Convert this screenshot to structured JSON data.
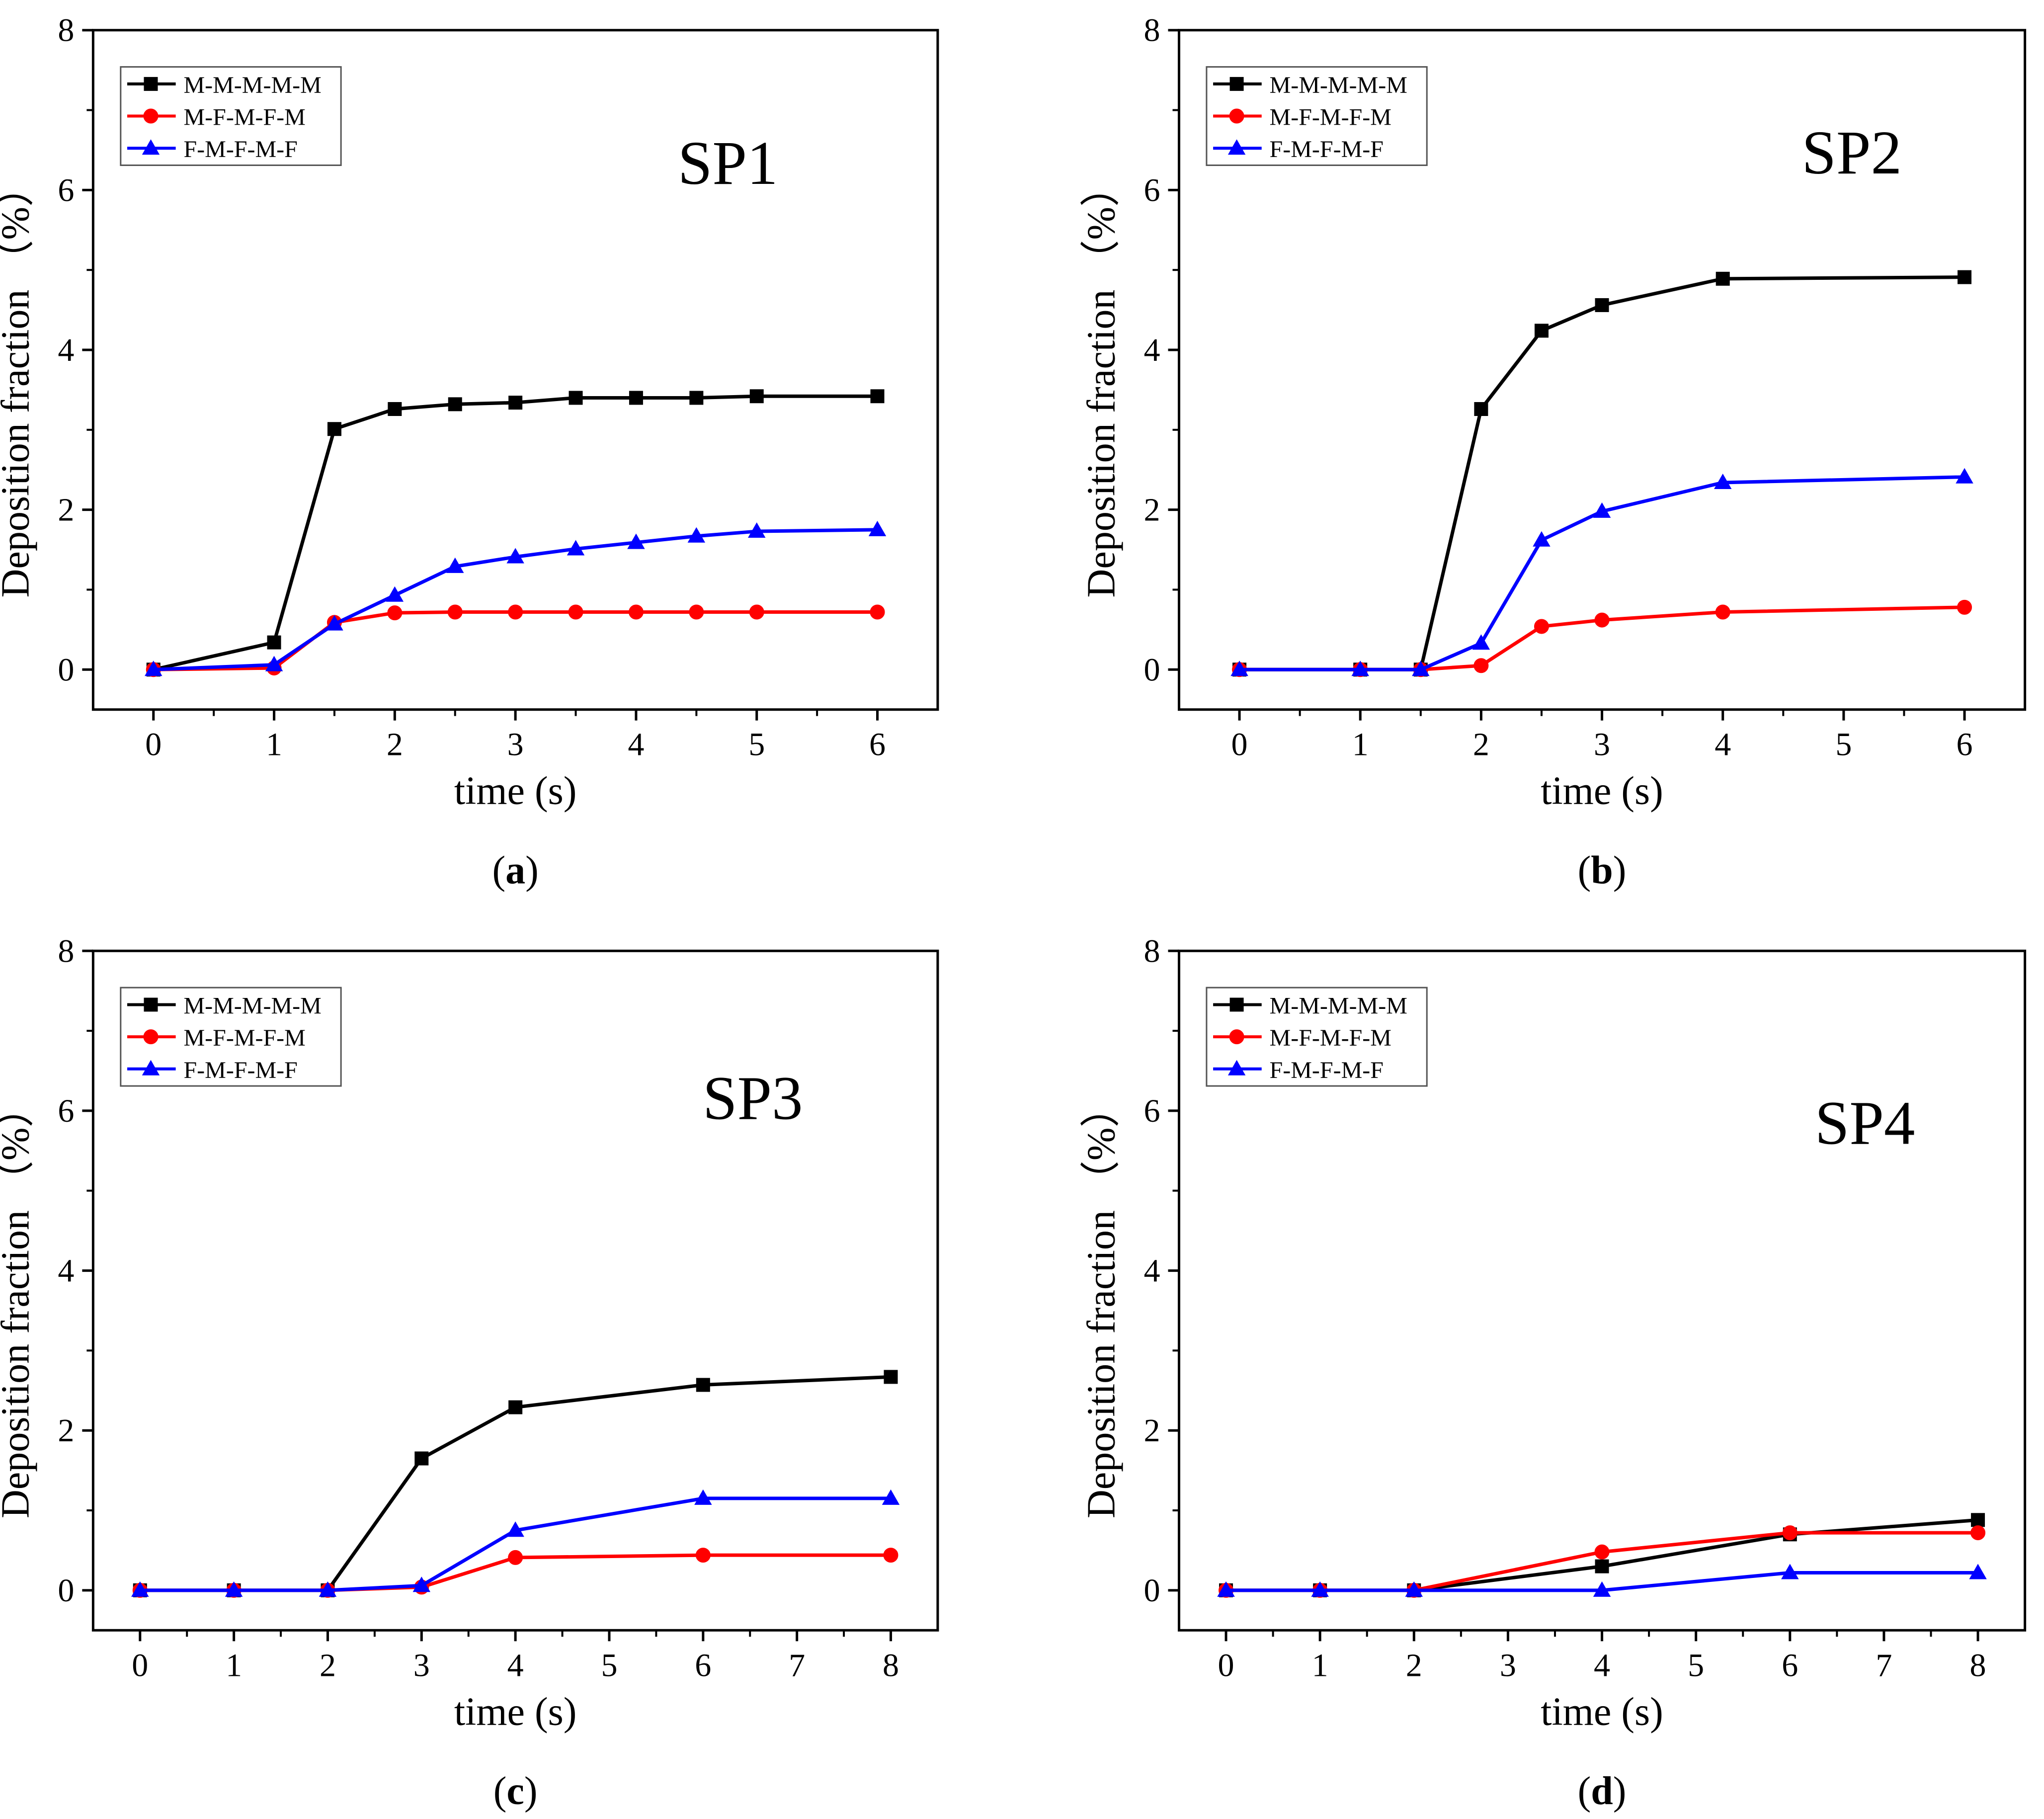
{
  "colors": {
    "M-M-M-M-M": "#000000",
    "M-F-M-F-M": "#ff0000",
    "F-M-F-M-F": "#0000ff"
  },
  "chart_data": [
    {
      "type": "line",
      "caption": "(a)",
      "annotation": "SP1",
      "xlabel": "time (s)",
      "ylabel": "Deposition fraction （%）",
      "xlim": [
        -0.5,
        6.5
      ],
      "ylim": [
        -0.5,
        8
      ],
      "xticks": [
        0,
        1,
        2,
        3,
        4,
        5,
        6
      ],
      "yticks": [
        0,
        2,
        4,
        6,
        8
      ],
      "grid": false,
      "legend_position": "top-left",
      "series": [
        {
          "name": "M-M-M-M-M",
          "marker": "square",
          "x": [
            0,
            1,
            1.5,
            2,
            2.5,
            3,
            3.5,
            4,
            4.5,
            5,
            6
          ],
          "y": [
            0,
            0.34,
            3.01,
            3.26,
            3.32,
            3.34,
            3.4,
            3.4,
            3.4,
            3.42,
            3.42
          ]
        },
        {
          "name": "M-F-M-F-M",
          "marker": "circle",
          "x": [
            0,
            1,
            1.5,
            2,
            2.5,
            3,
            3.5,
            4,
            4.5,
            5,
            6
          ],
          "y": [
            0,
            0.02,
            0.59,
            0.71,
            0.72,
            0.72,
            0.72,
            0.72,
            0.72,
            0.72,
            0.72
          ]
        },
        {
          "name": "F-M-F-M-F",
          "marker": "triangle",
          "x": [
            0,
            1,
            1.5,
            2,
            2.5,
            3,
            3.5,
            4,
            4.5,
            5,
            6
          ],
          "y": [
            0,
            0.06,
            0.57,
            0.93,
            1.29,
            1.41,
            1.51,
            1.59,
            1.67,
            1.73,
            1.75
          ]
        }
      ]
    },
    {
      "type": "line",
      "caption": "(b)",
      "annotation": "SP2",
      "xlabel": "time (s)",
      "ylabel": "Deposition fraction （%）",
      "xlim": [
        -0.5,
        6.5
      ],
      "ylim": [
        -0.5,
        8
      ],
      "xticks": [
        0,
        1,
        2,
        3,
        4,
        5,
        6
      ],
      "yticks": [
        0,
        2,
        4,
        6,
        8
      ],
      "grid": false,
      "legend_position": "top-left",
      "series": [
        {
          "name": "M-M-M-M-M",
          "marker": "square",
          "x": [
            0,
            1,
            1.5,
            2,
            2.5,
            3,
            4,
            6
          ],
          "y": [
            0,
            0,
            0,
            3.26,
            4.24,
            4.56,
            4.89,
            4.91
          ]
        },
        {
          "name": "M-F-M-F-M",
          "marker": "circle",
          "x": [
            0,
            1,
            1.5,
            2,
            2.5,
            3,
            4,
            6
          ],
          "y": [
            0,
            0,
            0,
            0.05,
            0.54,
            0.62,
            0.72,
            0.78
          ]
        },
        {
          "name": "F-M-F-M-F",
          "marker": "triangle",
          "x": [
            0,
            1,
            1.5,
            2,
            2.5,
            3,
            4,
            6
          ],
          "y": [
            0,
            0,
            0,
            0.33,
            1.62,
            1.98,
            2.34,
            2.41
          ]
        }
      ]
    },
    {
      "type": "line",
      "caption": "(c)",
      "annotation": "SP3",
      "xlabel": "time (s)",
      "ylabel": "Deposition fraction （%）",
      "xlim": [
        -0.5,
        8.5
      ],
      "ylim": [
        -0.5,
        8
      ],
      "xticks": [
        0,
        1,
        2,
        3,
        4,
        5,
        6,
        7,
        8
      ],
      "yticks": [
        0,
        2,
        4,
        6,
        8
      ],
      "grid": false,
      "legend_position": "top-left",
      "series": [
        {
          "name": "M-M-M-M-M",
          "marker": "square",
          "x": [
            0,
            1,
            2,
            3,
            4,
            6,
            8
          ],
          "y": [
            0,
            0,
            0,
            1.65,
            2.29,
            2.57,
            2.67
          ]
        },
        {
          "name": "M-F-M-F-M",
          "marker": "circle",
          "x": [
            0,
            1,
            2,
            3,
            4,
            6,
            8
          ],
          "y": [
            0,
            0,
            0,
            0.04,
            0.41,
            0.44,
            0.44
          ]
        },
        {
          "name": "F-M-F-M-F",
          "marker": "triangle",
          "x": [
            0,
            1,
            2,
            3,
            4,
            6,
            8
          ],
          "y": [
            0,
            0,
            0,
            0.06,
            0.75,
            1.15,
            1.15
          ]
        }
      ]
    },
    {
      "type": "line",
      "caption": "(d)",
      "annotation": "SP4",
      "xlabel": "time (s)",
      "ylabel": "Deposition fraction （%）",
      "xlim": [
        -0.5,
        8.5
      ],
      "ylim": [
        -0.5,
        8
      ],
      "xticks": [
        0,
        1,
        2,
        3,
        4,
        5,
        6,
        7,
        8
      ],
      "yticks": [
        0,
        2,
        4,
        6,
        8
      ],
      "grid": false,
      "legend_position": "top-left",
      "series": [
        {
          "name": "M-M-M-M-M",
          "marker": "square",
          "x": [
            0,
            1,
            2,
            4,
            6,
            8
          ],
          "y": [
            0,
            0,
            0,
            0.3,
            0.7,
            0.88
          ]
        },
        {
          "name": "M-F-M-F-M",
          "marker": "circle",
          "x": [
            0,
            1,
            2,
            4,
            6,
            8
          ],
          "y": [
            0,
            0,
            0,
            0.48,
            0.72,
            0.72
          ]
        },
        {
          "name": "F-M-F-M-F",
          "marker": "triangle",
          "x": [
            0,
            1,
            2,
            4,
            6,
            8
          ],
          "y": [
            0,
            0,
            0,
            0,
            0.22,
            0.22
          ]
        }
      ]
    }
  ]
}
